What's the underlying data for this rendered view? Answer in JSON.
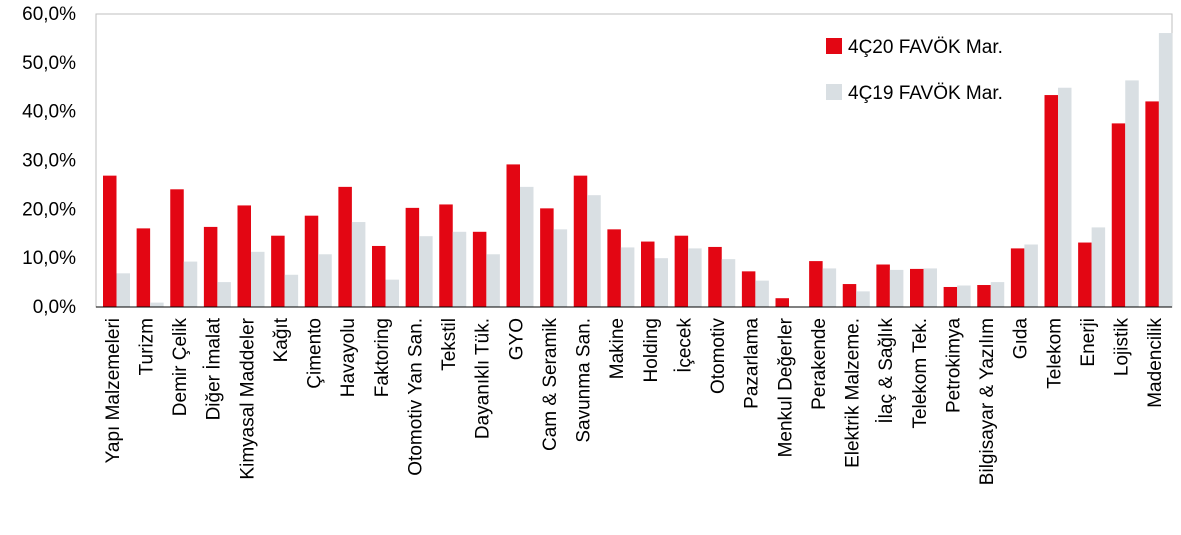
{
  "chart_data": {
    "type": "bar",
    "title": "",
    "xlabel": "",
    "ylabel": "",
    "ylim": [
      0,
      60
    ],
    "y_ticks": [
      0,
      10,
      20,
      30,
      40,
      50,
      60
    ],
    "y_tick_labels": [
      "0,0%",
      "10,0%",
      "20,0%",
      "30,0%",
      "40,0%",
      "50,0%",
      "60,0%"
    ],
    "grid": false,
    "legend_position": "top-right",
    "categories": [
      "Yapı Malzemeleri",
      "Turizm",
      "Demir Çelik",
      "Diğer İmalat",
      "Kimyasal Maddeler",
      "Kağıt",
      "Çimento",
      "Havayolu",
      "Faktoring",
      "Otomotiv Yan San.",
      "Tekstil",
      "Dayanıklı Tük.",
      "GYO",
      "Cam & Seramik",
      "Savunma San.",
      "Makine",
      "Holding",
      "İçecek",
      "Otomotiv",
      "Pazarlama",
      "Menkul Değerler",
      "Perakende",
      "Elektrik Malzeme.",
      "İlaç & Sağlık",
      "Telekom Tek.",
      "Petrokimya",
      "Bilgisayar & Yazılım",
      "Gıda",
      "Telekom",
      "Enerji",
      "Lojistik",
      "Madencilik"
    ],
    "series": [
      {
        "name": "4Ç20 FAVÖK Mar.",
        "color": "#e30613",
        "values": [
          26.9,
          16.1,
          24.1,
          16.4,
          20.8,
          14.6,
          18.7,
          24.6,
          12.5,
          20.3,
          21.0,
          15.4,
          29.2,
          20.2,
          26.9,
          15.9,
          13.4,
          14.6,
          12.3,
          7.3,
          1.8,
          9.4,
          4.7,
          8.7,
          7.8,
          4.1,
          4.5,
          12.0,
          43.4,
          13.2,
          37.6,
          42.1
        ]
      },
      {
        "name": "4Ç19 FAVÖK Mar.",
        "color": "#d9dfe3",
        "values": [
          6.9,
          0.9,
          9.3,
          5.1,
          11.3,
          6.6,
          10.8,
          17.4,
          5.6,
          14.5,
          15.4,
          10.8,
          24.6,
          15.9,
          22.9,
          12.2,
          10.0,
          12.0,
          9.8,
          5.4,
          0.0,
          7.9,
          3.2,
          7.6,
          7.9,
          4.4,
          5.1,
          12.8,
          44.9,
          16.3,
          46.4,
          56.1
        ]
      }
    ]
  }
}
